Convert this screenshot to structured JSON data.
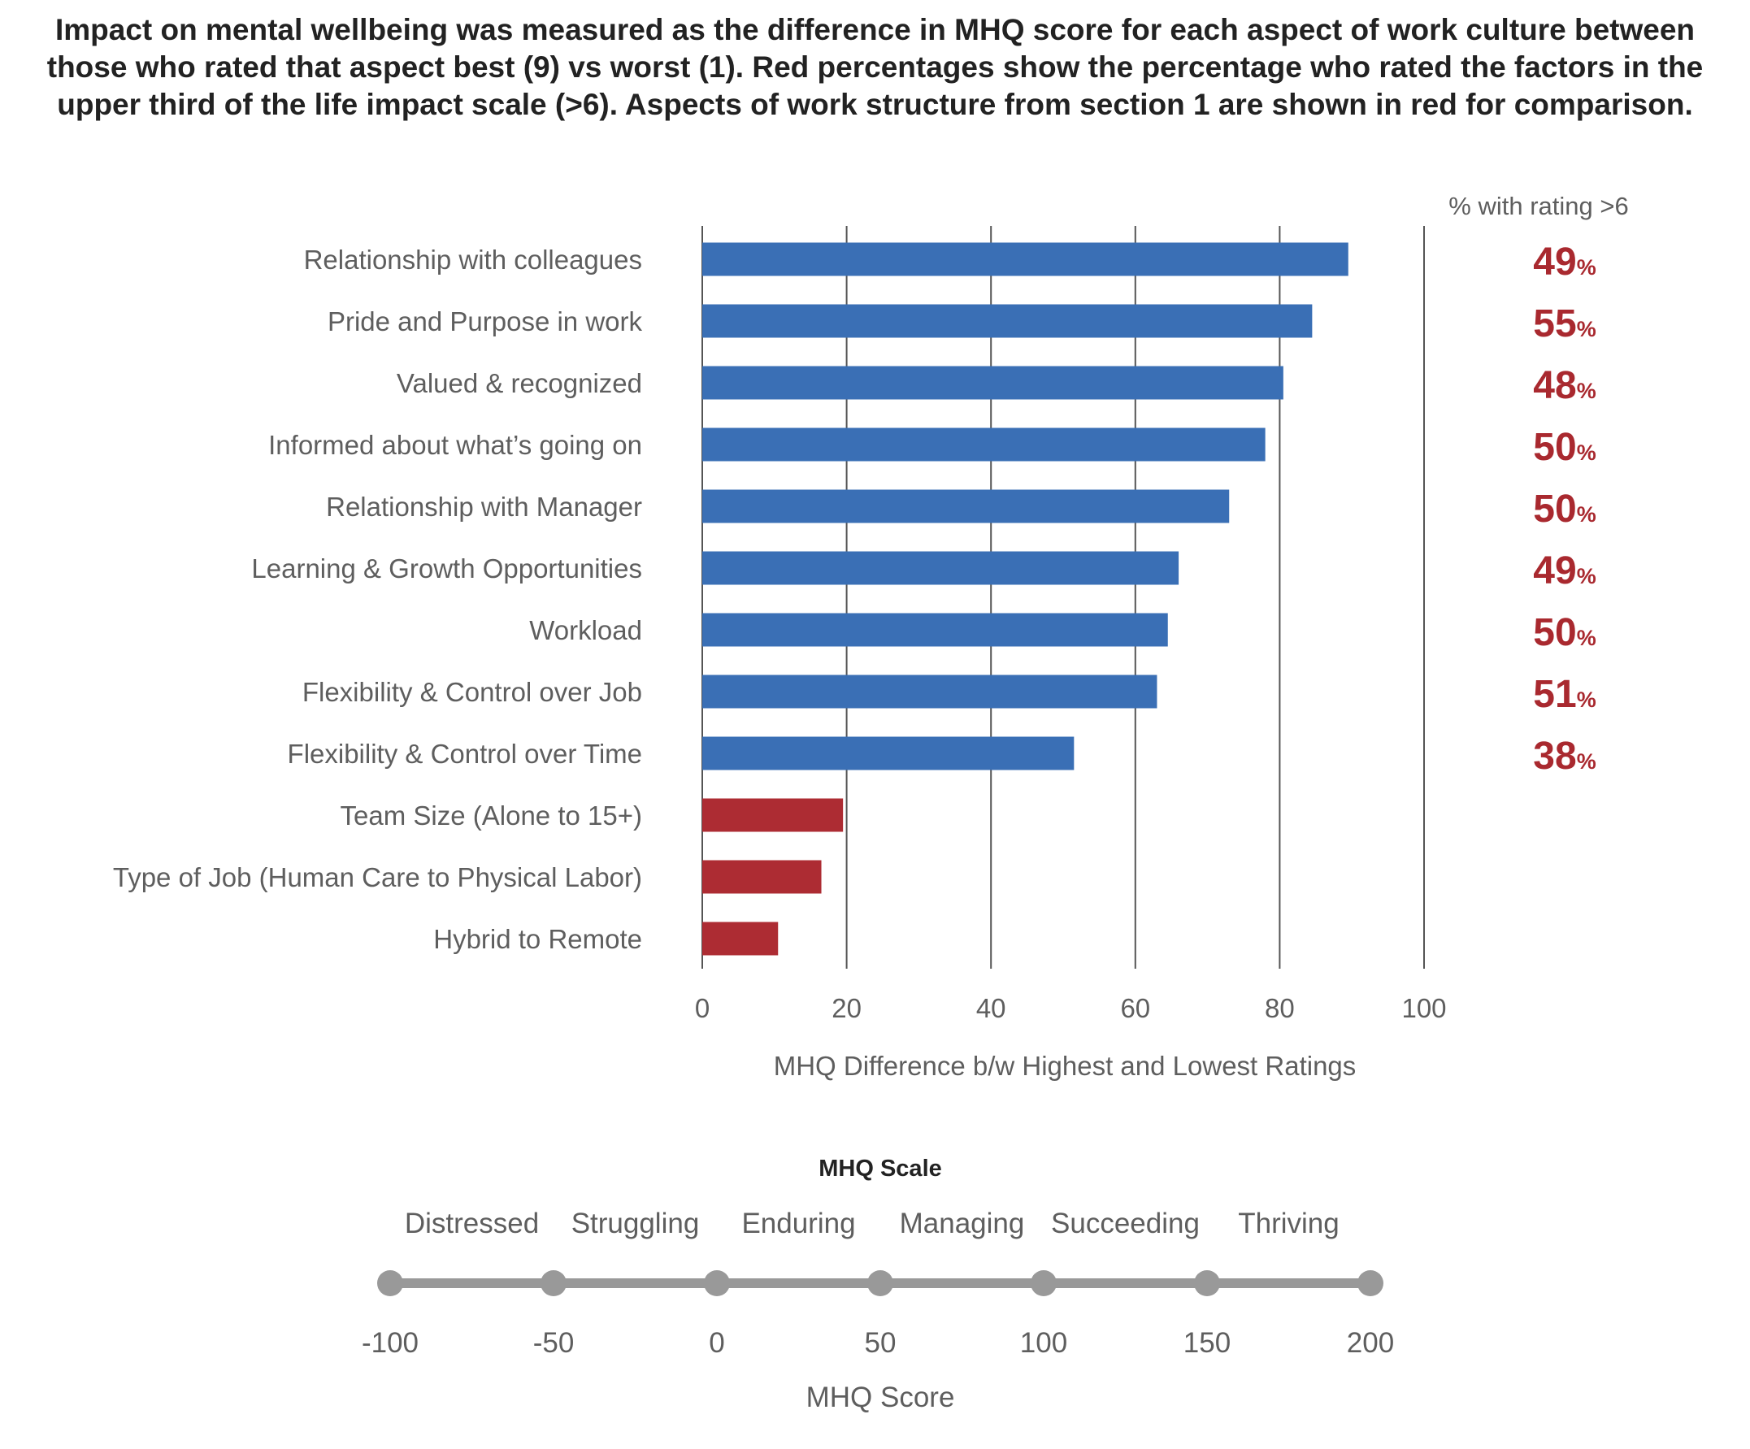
{
  "caption": "Impact on mental wellbeing was measured as the difference in MHQ score for each aspect of work culture between those who rated that aspect best (9) vs worst (1).  Red percentages show the percentage who rated the factors in the upper third of the life impact scale (>6). Aspects of work structure from section 1 are shown in red for comparison.",
  "colors": {
    "culture_bar": "#3a6fb5",
    "structure_bar": "#ad2c33",
    "percent_text": "#a9292f",
    "gridline": "#555555",
    "scale_line": "#999999"
  },
  "chart_data": [
    {
      "type": "bar",
      "orientation": "horizontal",
      "categories": [
        "Relationship with colleagues",
        "Pride and Purpose in work",
        "Valued & recognized",
        "Informed about what’s going on",
        "Relationship with Manager",
        "Learning & Growth Opportunities",
        "Workload",
        "Flexibility & Control over Job",
        "Flexibility & Control over Time",
        "Team Size (Alone to 15+)",
        "Type of Job (Human Care to Physical Labor)",
        "Hybrid to Remote"
      ],
      "values": [
        89.5,
        84.5,
        80.5,
        78,
        73,
        66,
        64.5,
        63,
        51.5,
        19.5,
        16.5,
        10.5
      ],
      "bar_group": [
        "culture",
        "culture",
        "culture",
        "culture",
        "culture",
        "culture",
        "culture",
        "culture",
        "culture",
        "structure",
        "structure",
        "structure"
      ],
      "xlabel": "MHQ Difference b/w Highest and Lowest Ratings",
      "xlim": [
        0,
        100
      ],
      "xticks": [
        "0",
        "20",
        "40",
        "60",
        "80",
        "100"
      ],
      "grid": "vertical",
      "percent_header": "% with rating >6",
      "percent_values": [
        "49",
        "55",
        "48",
        "50",
        "50",
        "49",
        "50",
        "51",
        "38"
      ],
      "percent_symbol": "%"
    },
    {
      "type": "scale",
      "title": "MHQ Scale",
      "bands": [
        "Distressed",
        "Struggling",
        "Enduring",
        "Managing",
        "Succeeding",
        "Thriving"
      ],
      "points": [
        -100,
        -50,
        0,
        50,
        100,
        150,
        200
      ],
      "tick_labels": [
        "-100",
        "-50",
        "0",
        "50",
        "100",
        "150",
        "200"
      ],
      "xlabel": "MHQ Score"
    }
  ]
}
